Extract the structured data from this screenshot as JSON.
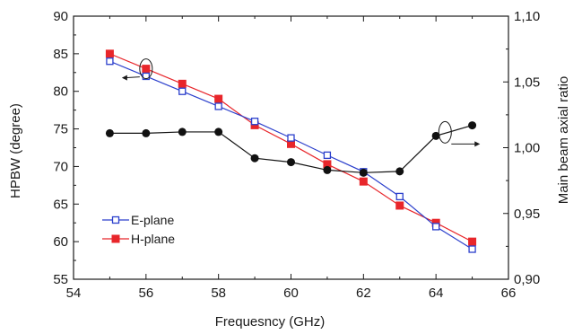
{
  "chart_data": {
    "type": "line",
    "title": "",
    "xlabel": "Frequesncy (GHz)",
    "ylabel": "HPBW (degree)",
    "y2label": "Main beam axial ratio",
    "xlim": [
      54,
      66
    ],
    "ylim": [
      55,
      90
    ],
    "y2lim": [
      0.9,
      1.1
    ],
    "x_ticks": [
      54,
      56,
      58,
      60,
      62,
      64,
      66
    ],
    "x_tick_labels": [
      "54",
      "56",
      "58",
      "60",
      "62",
      "64",
      "66"
    ],
    "y_ticks": [
      55,
      60,
      65,
      70,
      75,
      80,
      85,
      90
    ],
    "y_tick_labels": [
      "55",
      "60",
      "65",
      "70",
      "75",
      "80",
      "85",
      "90"
    ],
    "y2_ticks": [
      0.9,
      0.95,
      1.0,
      1.05,
      1.1
    ],
    "y2_tick_labels": [
      "0,90",
      "0,95",
      "1,00",
      "1,05",
      "1,10"
    ],
    "grid": false,
    "legend_position": "bottom-left",
    "series": [
      {
        "name": "E-plane",
        "axis": "left",
        "color": "#2b3fcc",
        "marker": "hollow-square",
        "x": [
          55,
          56,
          57,
          58,
          59,
          60,
          61,
          62,
          63,
          64,
          65
        ],
        "y": [
          84,
          82,
          80,
          78,
          76,
          73.8,
          71.5,
          69.3,
          66,
          62,
          59
        ]
      },
      {
        "name": "H-plane",
        "axis": "left",
        "color": "#e8262b",
        "marker": "filled-square",
        "x": [
          55,
          56,
          57,
          58,
          59,
          60,
          61,
          62,
          63,
          64,
          65
        ],
        "y": [
          85,
          83,
          81,
          79,
          75.5,
          73,
          70.3,
          68,
          64.8,
          62.5,
          60
        ]
      },
      {
        "axis": "right",
        "color": "#111111",
        "marker": "filled-circle",
        "x": [
          55,
          56,
          57,
          58,
          59,
          60,
          61,
          62,
          63,
          64,
          65
        ],
        "y": [
          1.011,
          1.011,
          1.012,
          1.012,
          0.992,
          0.989,
          0.983,
          0.981,
          0.982,
          1.009,
          1.017
        ]
      }
    ],
    "annotations": [
      {
        "type": "ellipse-arrow",
        "target": "left-axis",
        "at_x": 56,
        "at_y": 83
      },
      {
        "type": "ellipse-arrow",
        "target": "right-axis",
        "at_x": 64.3,
        "at_y": 1.009
      }
    ]
  }
}
